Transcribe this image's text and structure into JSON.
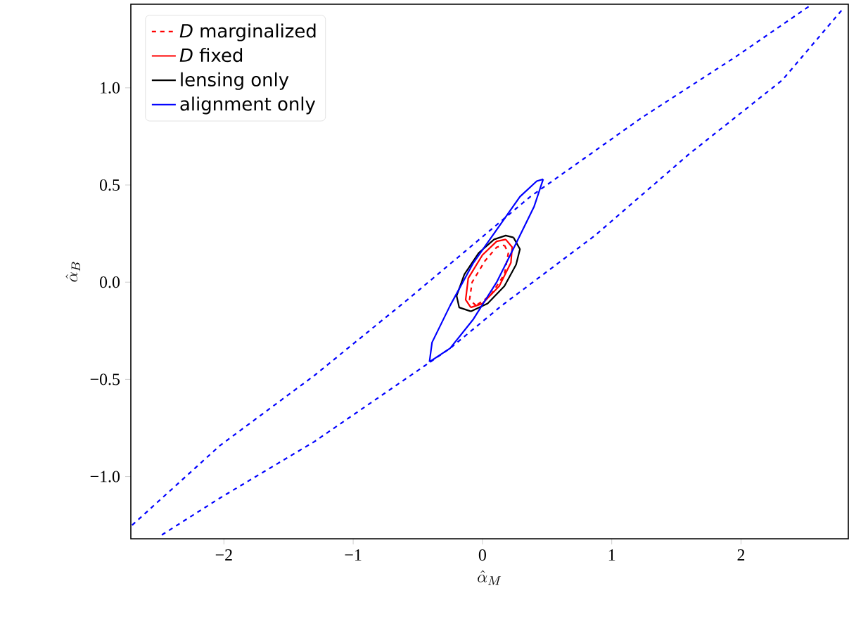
{
  "chart_data": {
    "type": "line",
    "xlabel": "\\hat{\\alpha}_M",
    "ylabel": "\\hat{\\alpha}_B",
    "xlim": [
      -2.72,
      2.83
    ],
    "ylim": [
      -1.32,
      1.43
    ],
    "xticks": [
      {
        "value": -2,
        "label": "−2"
      },
      {
        "value": -1,
        "label": "−1"
      },
      0,
      1,
      2
    ],
    "yticks": [
      {
        "value": -1.0,
        "label": "−1.0"
      },
      {
        "value": -0.5,
        "label": "−0.5"
      },
      {
        "value": 0.0,
        "label": "0.0"
      },
      0.5,
      {
        "value": 1.0,
        "label": "1.0"
      }
    ],
    "legend": "top left",
    "series": [
      {
        "color": "#0000ff",
        "line_style": "dashed",
        "x": [
          -2.71,
          -2.03,
          -1.3,
          -0.58,
          0.37,
          1.24,
          1.96,
          2.55,
          null,
          -2.48,
          -2.03,
          -1.3,
          -0.25,
          0.15,
          0.87,
          1.6,
          2.32,
          2.78
        ],
        "values": [
          -1.25,
          -0.84,
          -0.48,
          -0.09,
          0.44,
          0.85,
          1.16,
          1.43,
          null,
          -1.3,
          -1.11,
          -0.82,
          -0.34,
          -0.12,
          0.24,
          0.66,
          1.04,
          1.4
        ]
      },
      {
        "name": "*D* marginalized",
        "color": "#ff0000",
        "line_style": "dashed",
        "x": [
          0.17,
          0.2,
          0.17,
          0.06,
          -0.05,
          null,
          -0.05,
          -0.1,
          -0.08,
          0.02,
          0.11,
          0.17
        ],
        "values": [
          0.19,
          0.15,
          0.04,
          -0.07,
          -0.12,
          null,
          -0.12,
          -0.09,
          0.0,
          0.11,
          0.18,
          0.19
        ]
      },
      {
        "name": "*D* fixed",
        "color": "#ff0000",
        "line_style": "solid",
        "x": [
          0.18,
          0.23,
          0.22,
          0.13,
          0.0,
          -0.09,
          null,
          -0.09,
          -0.13,
          -0.11,
          0.0,
          0.11,
          0.18
        ],
        "values": [
          0.22,
          0.18,
          0.1,
          -0.02,
          -0.11,
          -0.13,
          null,
          -0.13,
          -0.09,
          0.02,
          0.14,
          0.21,
          0.22
        ]
      },
      {
        "name": "lensing only",
        "color": "#000000",
        "line_style": "solid",
        "x": [
          0.24,
          0.29,
          0.26,
          0.17,
          0.04,
          -0.09,
          null,
          -0.09,
          -0.18,
          -0.2,
          -0.14,
          -0.03,
          0.09,
          0.18,
          0.24
        ],
        "values": [
          0.23,
          0.17,
          0.09,
          -0.02,
          -0.11,
          -0.15,
          null,
          -0.15,
          -0.13,
          -0.07,
          0.04,
          0.15,
          0.22,
          0.24,
          0.23
        ]
      },
      {
        "name": "alignment only",
        "color": "#0000ff",
        "line_style": "solid",
        "x": [
          0.47,
          0.4,
          0.26,
          0.11,
          -0.07,
          -0.25,
          -0.41,
          null,
          -0.41,
          -0.39,
          -0.25,
          -0.07,
          0.11,
          0.29,
          0.42,
          0.47
        ],
        "values": [
          0.53,
          0.39,
          0.2,
          0.0,
          -0.19,
          -0.34,
          -0.41,
          null,
          -0.41,
          -0.31,
          -0.12,
          0.1,
          0.27,
          0.44,
          0.52,
          0.53
        ]
      }
    ]
  }
}
